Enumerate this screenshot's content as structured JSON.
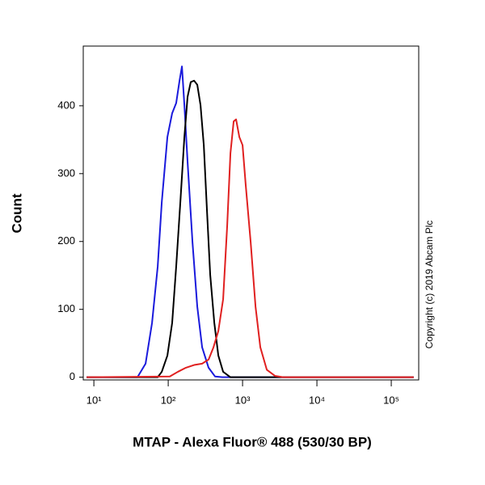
{
  "chart_data": {
    "type": "line",
    "xlabel": "MTAP - Alexa Fluor® 488 (530/30 BP)",
    "ylabel": "Count",
    "annotation": "Copyright (c) 2019 Abcam Plc",
    "log_x": true,
    "xlim": [
      7.2,
      234000
    ],
    "ylim": [
      -4,
      488
    ],
    "xticks": [
      {
        "value": 10,
        "label": "10¹"
      },
      {
        "value": 100,
        "label": "10²"
      },
      {
        "value": 1000,
        "label": "10³"
      },
      {
        "value": 10000,
        "label": "10⁴"
      },
      {
        "value": 100000,
        "label": "10⁵"
      }
    ],
    "yticks": [
      0,
      100,
      200,
      300,
      400
    ],
    "series": [
      {
        "color": "#1a1adc",
        "x": [
          8,
          38.6,
          49.6,
          60.6,
          72.2,
          81.9,
          97.5,
          113,
          128,
          142,
          153,
          165,
          182,
          212,
          246,
          286,
          349,
          427,
          535,
          200000
        ],
        "values": [
          0,
          0,
          20,
          80,
          163,
          258,
          354,
          389,
          404,
          437,
          458,
          401,
          318,
          199,
          104,
          44,
          14,
          1,
          0,
          0
        ]
      },
      {
        "color": "#000000",
        "x": [
          8,
          72.2,
          81.9,
          97.5,
          113,
          128,
          145.6,
          165,
          182,
          201,
          223,
          246,
          272,
          301,
          332,
          367,
          417,
          472,
          548,
          687,
          200000
        ],
        "values": [
          0,
          0,
          8,
          32,
          80,
          163,
          258,
          354,
          413,
          435,
          437,
          431,
          401,
          342,
          246,
          151,
          80,
          32,
          8,
          0,
          0
        ]
      },
      {
        "color": "#e02020",
        "x": [
          8,
          105,
          135,
          173,
          223,
          286,
          349,
          406,
          472,
          548,
          621,
          687,
          759,
          818,
          905,
          1000,
          1105,
          1285,
          1494,
          1734,
          2118,
          2723,
          3493,
          200000
        ],
        "values": [
          0,
          1,
          8,
          14,
          18,
          20,
          26,
          44,
          68,
          115,
          223,
          330,
          377,
          380,
          354,
          342,
          282,
          199,
          104,
          44,
          11,
          2,
          0,
          0
        ]
      }
    ]
  }
}
